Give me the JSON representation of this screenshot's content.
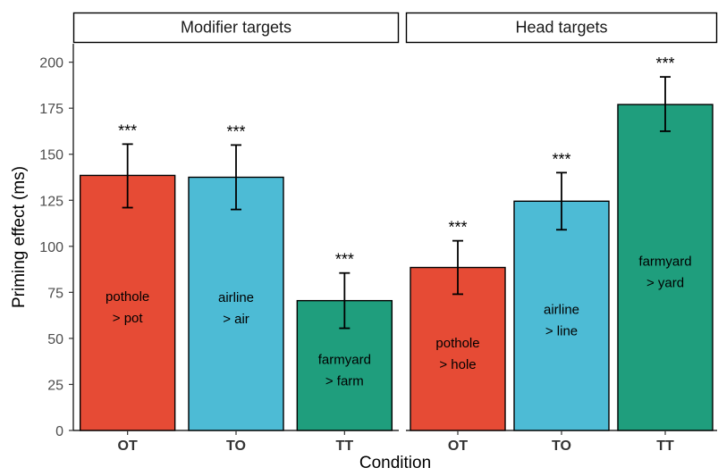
{
  "chart_data": {
    "type": "bar",
    "ylabel": "Priming effect (ms)",
    "xlabel": "Condition",
    "ylim": [
      0,
      210
    ],
    "yticks": [
      0,
      25,
      50,
      75,
      100,
      125,
      150,
      175,
      200
    ],
    "grid": false,
    "colors": {
      "OT": "#e64b35",
      "TO": "#4dbbd5",
      "TT": "#1f9e7d"
    },
    "panels": [
      {
        "title": "Modifier targets",
        "categories": [
          "OT",
          "TO",
          "TT"
        ],
        "values": [
          138.5,
          137.5,
          70.5
        ],
        "error_low": [
          121,
          120,
          55.5
        ],
        "error_high": [
          155.5,
          155,
          85.5
        ],
        "significance": [
          "***",
          "***",
          "***"
        ],
        "bar_labels": [
          [
            "pothole",
            "> pot"
          ],
          [
            "airline",
            "> air"
          ],
          [
            "farmyard",
            "> farm"
          ]
        ]
      },
      {
        "title": "Head targets",
        "categories": [
          "OT",
          "TO",
          "TT"
        ],
        "values": [
          88.5,
          124.5,
          177
        ],
        "error_low": [
          74,
          109,
          162.5
        ],
        "error_high": [
          103,
          140,
          192
        ],
        "significance": [
          "***",
          "***",
          "***"
        ],
        "bar_labels": [
          [
            "pothole",
            "> hole"
          ],
          [
            "airline",
            "> line"
          ],
          [
            "farmyard",
            "> yard"
          ]
        ]
      }
    ]
  }
}
